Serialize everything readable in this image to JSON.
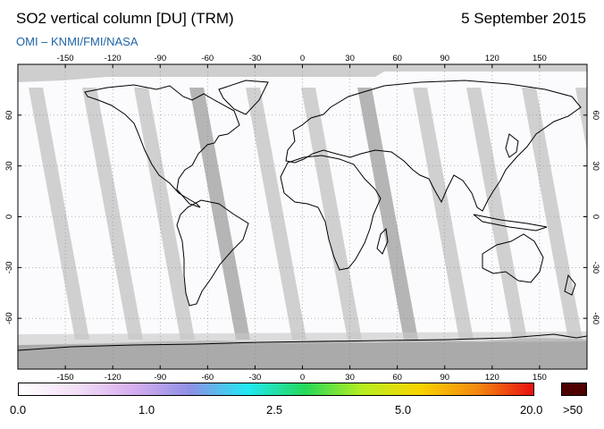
{
  "header": {
    "title": "SO2 vertical column [DU] (TRM)",
    "date": "5 September 2015",
    "credit": "OMI  –  KNMI/FMI/NASA"
  },
  "map": {
    "lon_ticks": [
      "-150",
      "-120",
      "-90",
      "-60",
      "-30",
      "0",
      "30",
      "60",
      "90",
      "120",
      "150"
    ],
    "lat_ticks": [
      "60",
      "30",
      "0",
      "-30",
      "-60"
    ],
    "lon_range": [
      -180,
      180
    ],
    "lat_range": [
      -90,
      90
    ],
    "projection": "equirectangular",
    "colors": {
      "land_outline": "#000000",
      "missing_data": "#aaaaaa",
      "orbit_gap": "#c8c8c8",
      "grid": "#888888"
    }
  },
  "colorbar": {
    "labels": [
      "0.0",
      "1.0",
      "2.5",
      "5.0",
      "20.0",
      ">50"
    ],
    "stops": [
      "#ffffff",
      "#f3dff6",
      "#d6aeee",
      "#8f8fe6",
      "#22e8f4",
      "#25d85a",
      "#b6ee20",
      "#f8d400",
      "#f48a10",
      "#e81010"
    ],
    "overflow_color": "#4e0000"
  }
}
